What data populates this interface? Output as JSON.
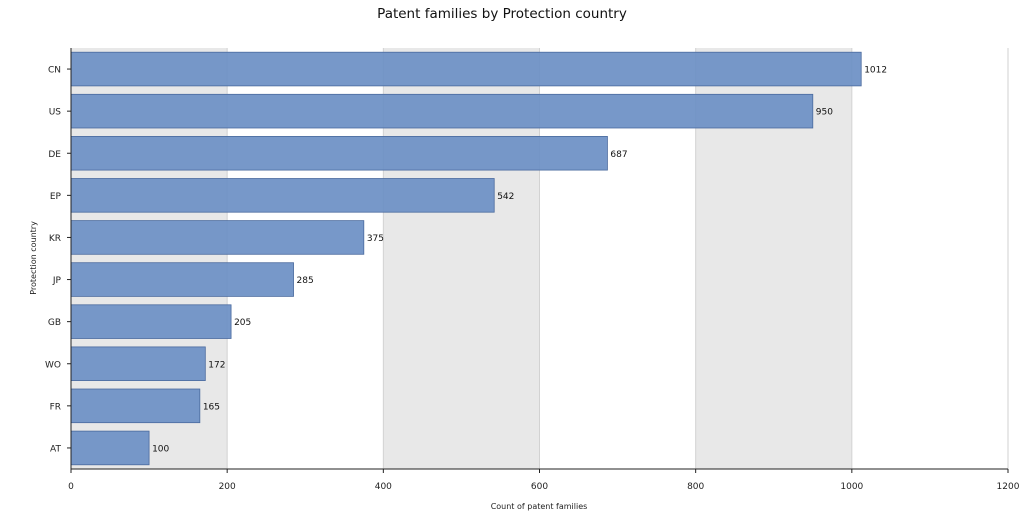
{
  "chart_data": {
    "type": "bar",
    "orientation": "horizontal",
    "title": "Patent families by Protection country",
    "xlabel": "Count of patent families",
    "ylabel": "Protection country",
    "categories": [
      "CN",
      "US",
      "DE",
      "EP",
      "KR",
      "JP",
      "GB",
      "WO",
      "FR",
      "AT"
    ],
    "values": [
      1012,
      950,
      687,
      542,
      375,
      285,
      205,
      172,
      165,
      100
    ],
    "xlim": [
      0,
      1200
    ],
    "xticks": [
      0,
      200,
      400,
      600,
      800,
      1000,
      1200
    ],
    "grid": "alternating vertical bands",
    "bar_color": "#6b8fc4",
    "bar_edge_color": "#4a6a9e",
    "band_color": "#e8e8e8"
  }
}
